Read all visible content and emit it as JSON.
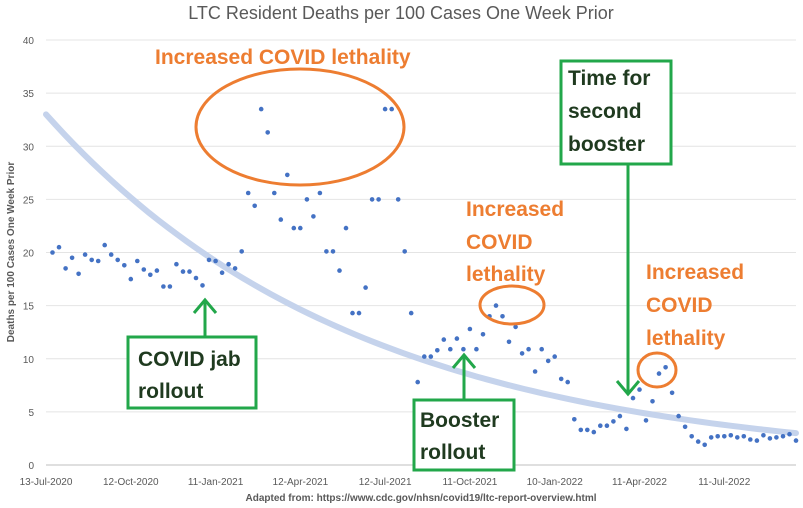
{
  "chart_data": {
    "type": "scatter",
    "title": "LTC Resident Deaths per 100 Cases One Week Prior",
    "ylabel": "Deaths per 100 Cases One Week Prior",
    "xlabel": "",
    "ylim": [
      0,
      40
    ],
    "yticks": [
      0,
      5,
      10,
      15,
      20,
      25,
      30,
      35,
      40
    ],
    "xlim": [
      "2020-07-13",
      "2022-09-26"
    ],
    "xticks": [
      "13-Jul-2020",
      "12-Oct-2020",
      "11-Jan-2021",
      "12-Apr-2021",
      "12-Jul-2021",
      "11-Oct-2021",
      "10-Jan-2022",
      "11-Apr-2022",
      "11-Jul-2022"
    ],
    "grid": "horizontal",
    "colors": {
      "points": "#4472C4",
      "trend": "#C5D3EC",
      "orange": "#ED7D31",
      "green": "#22A74A"
    },
    "series": [
      {
        "points": [
          [
            "2020-07-20",
            20.0
          ],
          [
            "2020-07-27",
            20.5
          ],
          [
            "2020-08-03",
            18.5
          ],
          [
            "2020-08-10",
            19.5
          ],
          [
            "2020-08-17",
            18.0
          ],
          [
            "2020-08-24",
            19.8
          ],
          [
            "2020-08-31",
            19.3
          ],
          [
            "2020-09-07",
            19.2
          ],
          [
            "2020-09-14",
            20.7
          ],
          [
            "2020-09-21",
            19.8
          ],
          [
            "2020-09-28",
            19.3
          ],
          [
            "2020-10-05",
            18.8
          ],
          [
            "2020-10-12",
            17.5
          ],
          [
            "2020-10-19",
            19.2
          ],
          [
            "2020-10-26",
            18.4
          ],
          [
            "2020-11-02",
            17.9
          ],
          [
            "2020-11-09",
            18.3
          ],
          [
            "2020-11-16",
            16.8
          ],
          [
            "2020-11-23",
            16.8
          ],
          [
            "2020-11-30",
            18.9
          ],
          [
            "2020-12-07",
            18.2
          ],
          [
            "2020-12-14",
            18.2
          ],
          [
            "2020-12-21",
            17.6
          ],
          [
            "2020-12-28",
            16.9
          ],
          [
            "2021-01-04",
            19.3
          ],
          [
            "2021-01-11",
            19.2
          ],
          [
            "2021-01-18",
            18.1
          ],
          [
            "2021-01-25",
            18.9
          ],
          [
            "2021-02-01",
            18.5
          ],
          [
            "2021-02-08",
            20.1
          ],
          [
            "2021-02-15",
            25.6
          ],
          [
            "2021-02-22",
            24.4
          ],
          [
            "2021-03-01",
            33.5
          ],
          [
            "2021-03-08",
            31.3
          ],
          [
            "2021-03-15",
            25.6
          ],
          [
            "2021-03-22",
            23.1
          ],
          [
            "2021-03-29",
            27.3
          ],
          [
            "2021-04-05",
            22.3
          ],
          [
            "2021-04-12",
            22.3
          ],
          [
            "2021-04-19",
            25.0
          ],
          [
            "2021-04-26",
            23.4
          ],
          [
            "2021-05-03",
            25.6
          ],
          [
            "2021-05-10",
            20.1
          ],
          [
            "2021-05-17",
            20.1
          ],
          [
            "2021-05-24",
            18.3
          ],
          [
            "2021-05-31",
            22.3
          ],
          [
            "2021-06-07",
            14.3
          ],
          [
            "2021-06-14",
            14.3
          ],
          [
            "2021-06-21",
            16.7
          ],
          [
            "2021-06-28",
            25.0
          ],
          [
            "2021-07-05",
            25.0
          ],
          [
            "2021-07-12",
            33.5
          ],
          [
            "2021-07-19",
            33.5
          ],
          [
            "2021-07-26",
            25.0
          ],
          [
            "2021-08-02",
            20.1
          ],
          [
            "2021-08-09",
            14.3
          ],
          [
            "2021-08-16",
            7.8
          ],
          [
            "2021-08-23",
            10.2
          ],
          [
            "2021-08-30",
            10.2
          ],
          [
            "2021-09-06",
            10.8
          ],
          [
            "2021-09-13",
            11.8
          ],
          [
            "2021-09-20",
            10.9
          ],
          [
            "2021-09-27",
            11.9
          ],
          [
            "2021-10-04",
            10.9
          ],
          [
            "2021-10-11",
            12.8
          ],
          [
            "2021-10-18",
            10.9
          ],
          [
            "2021-10-25",
            12.3
          ],
          [
            "2021-11-01",
            14.0
          ],
          [
            "2021-11-08",
            15.0
          ],
          [
            "2021-11-15",
            14.0
          ],
          [
            "2021-11-22",
            11.6
          ],
          [
            "2021-11-29",
            13.0
          ],
          [
            "2021-12-06",
            10.5
          ],
          [
            "2021-12-13",
            10.9
          ],
          [
            "2021-12-20",
            8.8
          ],
          [
            "2021-12-27",
            10.9
          ],
          [
            "2022-01-03",
            9.8
          ],
          [
            "2022-01-10",
            10.2
          ],
          [
            "2022-01-17",
            8.1
          ],
          [
            "2022-01-24",
            7.8
          ],
          [
            "2022-01-31",
            4.3
          ],
          [
            "2022-02-07",
            3.3
          ],
          [
            "2022-02-14",
            3.3
          ],
          [
            "2022-02-21",
            3.1
          ],
          [
            "2022-02-28",
            3.7
          ],
          [
            "2022-03-07",
            3.7
          ],
          [
            "2022-03-14",
            4.1
          ],
          [
            "2022-03-21",
            4.6
          ],
          [
            "2022-03-28",
            3.4
          ],
          [
            "2022-04-04",
            6.3
          ],
          [
            "2022-04-11",
            7.1
          ],
          [
            "2022-04-18",
            4.2
          ],
          [
            "2022-04-25",
            6.0
          ],
          [
            "2022-05-02",
            8.6
          ],
          [
            "2022-05-09",
            9.2
          ],
          [
            "2022-05-16",
            6.8
          ],
          [
            "2022-05-23",
            4.6
          ],
          [
            "2022-05-30",
            3.6
          ],
          [
            "2022-06-06",
            2.7
          ],
          [
            "2022-06-13",
            2.2
          ],
          [
            "2022-06-20",
            1.9
          ],
          [
            "2022-06-27",
            2.6
          ],
          [
            "2022-07-04",
            2.7
          ],
          [
            "2022-07-11",
            2.7
          ],
          [
            "2022-07-18",
            2.8
          ],
          [
            "2022-07-25",
            2.6
          ],
          [
            "2022-08-01",
            2.7
          ],
          [
            "2022-08-08",
            2.4
          ],
          [
            "2022-08-15",
            2.3
          ],
          [
            "2022-08-22",
            2.8
          ],
          [
            "2022-08-29",
            2.5
          ],
          [
            "2022-09-05",
            2.6
          ],
          [
            "2022-09-12",
            2.7
          ],
          [
            "2022-09-19",
            2.9
          ],
          [
            "2022-09-26",
            2.3
          ]
        ]
      }
    ],
    "trendline": {
      "type": "exponential",
      "start": [
        "2020-07-13",
        33.0
      ],
      "end": [
        "2022-09-26",
        3.0
      ]
    },
    "annotations": {
      "orange": [
        {
          "lines": [
            "Increased COVID lethality"
          ],
          "date": "2021-01-25"
        },
        {
          "lines": [
            "Increased",
            "COVID",
            "lethality"
          ],
          "date": "2021-11-08"
        },
        {
          "lines": [
            "Increased",
            "COVID",
            "lethality"
          ],
          "date": "2022-05-09"
        }
      ],
      "green": [
        {
          "lines": [
            "COVID jab",
            "rollout"
          ],
          "date": "2020-12-28"
        },
        {
          "lines": [
            "Booster",
            "rollout"
          ],
          "date": "2021-10-25"
        },
        {
          "lines": [
            "Time for",
            "second",
            "booster"
          ],
          "date": "2022-04-04"
        }
      ]
    },
    "source": "Adapted from: https://www.cdc.gov/nhsn/covid19/ltc-report-overview.html"
  }
}
